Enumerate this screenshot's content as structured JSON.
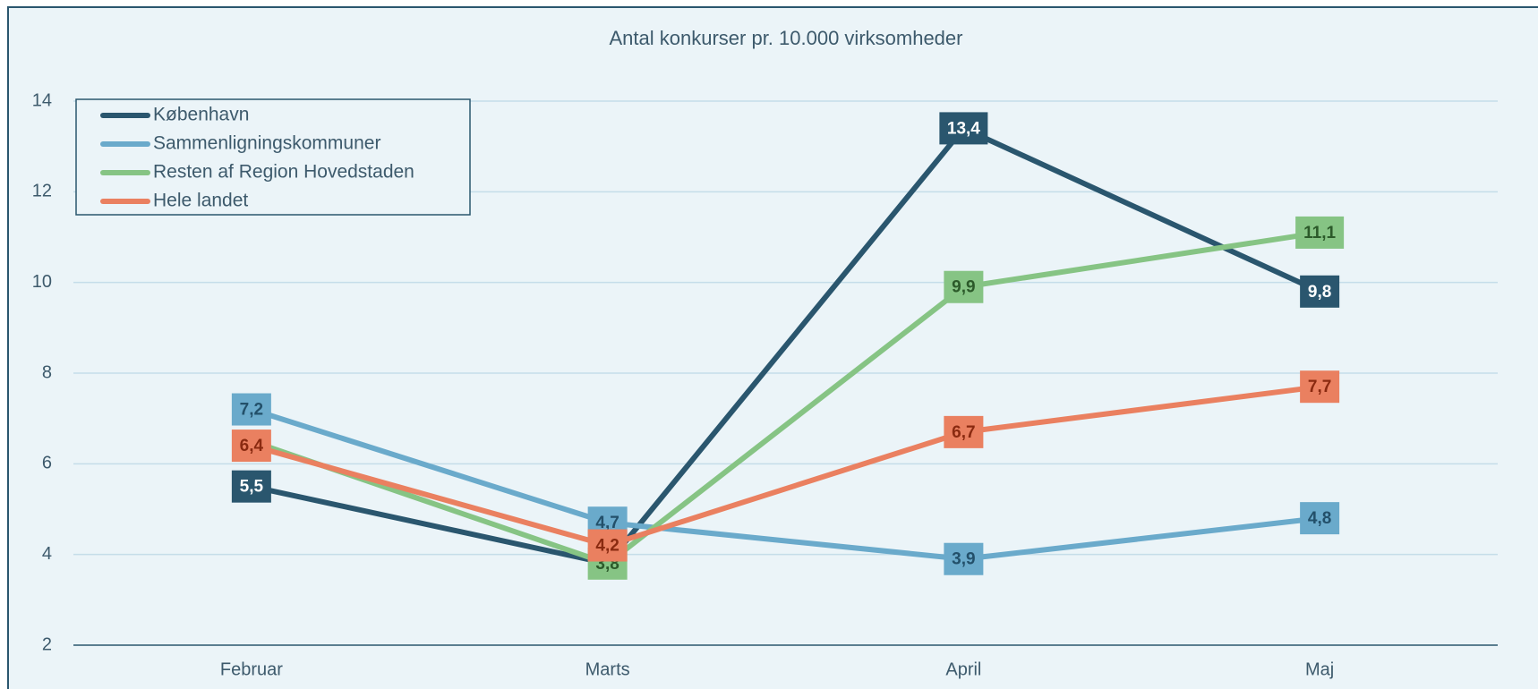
{
  "chart_data": {
    "type": "line",
    "title": "Antal konkurser pr. 10.000 virksomheder",
    "categories": [
      "Februar",
      "Marts",
      "April",
      "Maj"
    ],
    "series": [
      {
        "name": "København",
        "color": "#2a566e",
        "label_text_color": "#ffffff",
        "values": [
          5.5,
          3.8,
          13.4,
          9.8
        ],
        "value_labels": [
          "5,5",
          null,
          "13,4",
          "9,8"
        ]
      },
      {
        "name": "Sammenligningskommuner",
        "color": "#6aaacb",
        "label_text_color": "#23506a",
        "values": [
          7.2,
          4.7,
          3.9,
          4.8
        ],
        "value_labels": [
          "7,2",
          "4,7",
          "3,9",
          "4,8"
        ]
      },
      {
        "name": "Resten af Region Hovedstaden",
        "color": "#86c484",
        "label_text_color": "#2c5a2a",
        "values": [
          6.5,
          3.8,
          9.9,
          11.1
        ],
        "value_labels": [
          null,
          "3,8",
          "9,9",
          "11,1"
        ]
      },
      {
        "name": "Hele landet",
        "color": "#ea8060",
        "label_text_color": "#8a2a10",
        "values": [
          6.4,
          4.2,
          6.7,
          7.7
        ],
        "value_labels": [
          "6,4",
          "4,2",
          "6,7",
          "7,7"
        ]
      }
    ],
    "ylim": [
      2,
      14
    ],
    "yticks": [
      2,
      4,
      6,
      8,
      10,
      12,
      14
    ],
    "grid": true,
    "legend": "upper left"
  }
}
